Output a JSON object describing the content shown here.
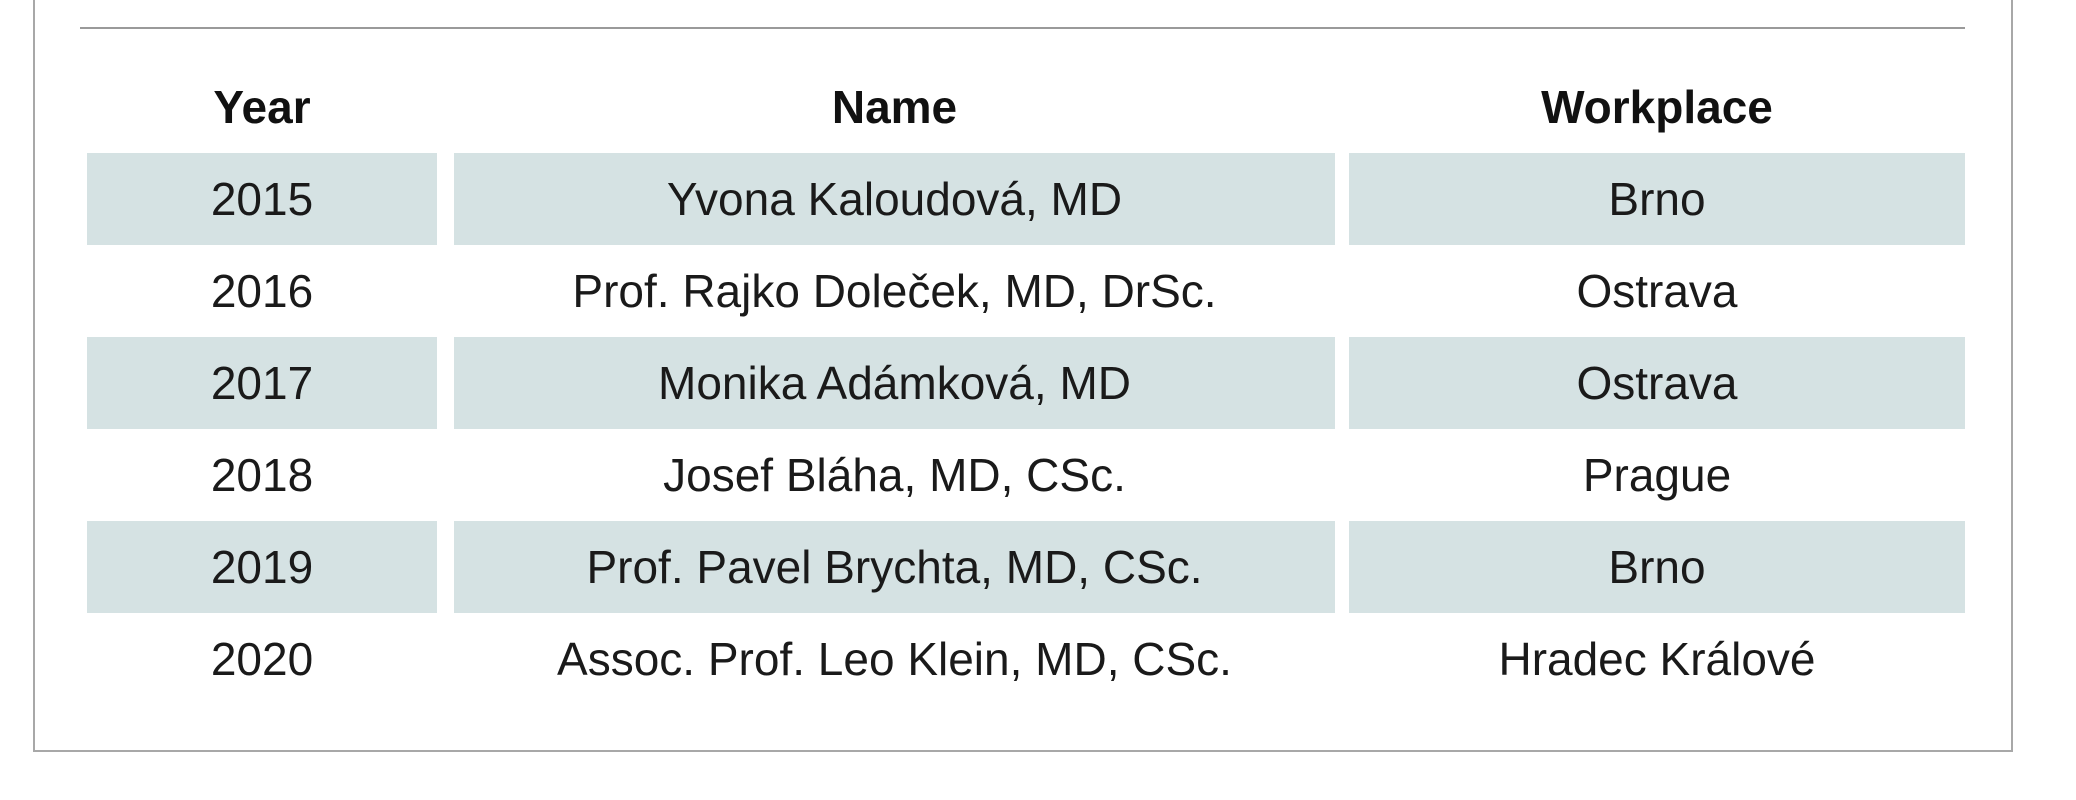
{
  "table": {
    "headers": {
      "year": "Year",
      "name": "Name",
      "workplace": "Workplace"
    },
    "rows": [
      {
        "year": "2015",
        "name": "Yvona Kaloudová, MD",
        "workplace": "Brno"
      },
      {
        "year": "2016",
        "name": "Prof. Rajko Doleček, MD, DrSc.",
        "workplace": "Ostrava"
      },
      {
        "year": "2017",
        "name": "Monika Adámková, MD",
        "workplace": "Ostrava"
      },
      {
        "year": "2018",
        "name": "Josef Bláha, MD, CSc.",
        "workplace": "Prague"
      },
      {
        "year": "2019",
        "name": "Prof. Pavel Brychta, MD, CSc.",
        "workplace": "Brno"
      },
      {
        "year": "2020",
        "name": "Assoc. Prof. Leo Klein, MD, CSc.",
        "workplace": "Hradec Králové"
      }
    ],
    "colors": {
      "row_shading": "#d5e2e3",
      "frame_border": "#a8a8a8",
      "top_rule": "#9a9a9a",
      "text": "#1a1a1a"
    }
  }
}
